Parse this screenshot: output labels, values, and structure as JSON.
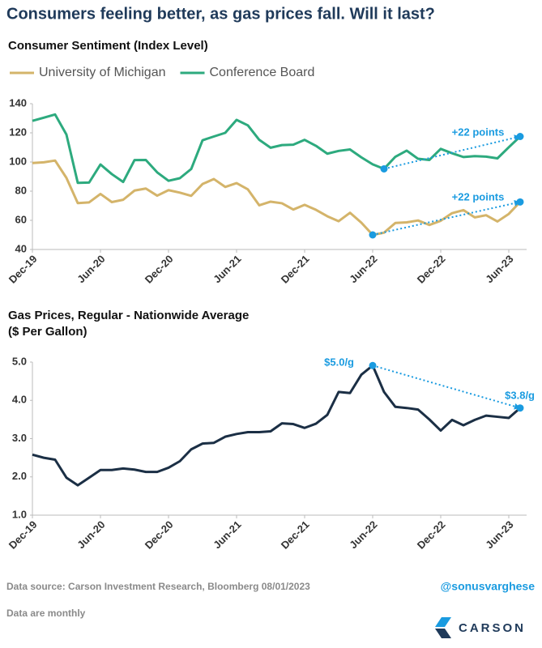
{
  "title": "Consumers feeling better, as gas prices fall. Will it last?",
  "chart_data": [
    {
      "type": "line",
      "title": "Consumer Sentiment (Index Level)",
      "categories": [
        "Dec-19",
        null,
        null,
        null,
        null,
        null,
        "Jun-20",
        null,
        null,
        null,
        null,
        null,
        "Dec-20",
        null,
        null,
        null,
        null,
        null,
        "Jun-21",
        null,
        null,
        null,
        null,
        null,
        "Dec-21",
        null,
        null,
        null,
        null,
        null,
        "Jun-22",
        null,
        null,
        null,
        null,
        null,
        "Dec-22",
        null,
        null,
        null,
        null,
        null,
        "Jun-23",
        null
      ],
      "series": [
        {
          "name": "University of Michigan",
          "color": "#d4b46a",
          "values": [
            99.3,
            99.8,
            101,
            89.1,
            71.8,
            72.3,
            78.1,
            72.5,
            74.1,
            80.4,
            81.8,
            76.9,
            80.7,
            79,
            76.8,
            84.9,
            88.3,
            82.9,
            85.5,
            81.2,
            70.3,
            72.8,
            71.7,
            67.4,
            70.6,
            67.2,
            62.8,
            59.4,
            65.2,
            58.4,
            50,
            51.5,
            58.2,
            58.6,
            59.9,
            56.8,
            59.7,
            64.9,
            67,
            62,
            63.5,
            59.2,
            64.4,
            72.6
          ]
        },
        {
          "name": "Conference Board",
          "color": "#2daa7e",
          "values": [
            128.2,
            130.4,
            132.6,
            118.8,
            85.7,
            85.9,
            98.3,
            91.7,
            86.3,
            101.3,
            101.4,
            92.9,
            87.1,
            88.9,
            95.2,
            114.9,
            117.5,
            120,
            128.9,
            125.1,
            115.2,
            109.8,
            111.6,
            111.9,
            115.2,
            111.1,
            105.7,
            107.6,
            108.6,
            103.2,
            98.4,
            95.3,
            103.6,
            107.8,
            102.2,
            101.4,
            109,
            106,
            103.4,
            104,
            103.7,
            102.5,
            110.1,
            117.5
          ]
        }
      ],
      "ylim": [
        40,
        140
      ],
      "yticks": [
        40,
        60,
        80,
        100,
        120,
        140
      ],
      "annotations": [
        "+22 points",
        "+22 points"
      ],
      "annotation_color": "#1a9be0"
    },
    {
      "type": "line",
      "title": [
        "Gas Prices, Regular - Nationwide Average",
        "($ Per Gallon)"
      ],
      "categories": [
        "Dec-19",
        null,
        null,
        null,
        null,
        null,
        "Jun-20",
        null,
        null,
        null,
        null,
        null,
        "Dec-20",
        null,
        null,
        null,
        null,
        null,
        "Jun-21",
        null,
        null,
        null,
        null,
        null,
        "Dec-21",
        null,
        null,
        null,
        null,
        null,
        "Jun-22",
        null,
        null,
        null,
        null,
        null,
        "Dec-22",
        null,
        null,
        null,
        null,
        null,
        "Jun-23",
        null
      ],
      "color": "#1b2f45",
      "values": [
        2.58,
        2.5,
        2.45,
        1.98,
        1.78,
        1.98,
        2.18,
        2.18,
        2.22,
        2.19,
        2.13,
        2.13,
        2.24,
        2.41,
        2.72,
        2.87,
        2.89,
        3.05,
        3.12,
        3.17,
        3.17,
        3.19,
        3.4,
        3.38,
        3.28,
        3.39,
        3.62,
        4.22,
        4.19,
        4.67,
        4.91,
        4.22,
        3.83,
        3.8,
        3.76,
        3.5,
        3.21,
        3.49,
        3.35,
        3.49,
        3.6,
        3.57,
        3.54,
        3.8
      ],
      "ylim": [
        1,
        5
      ],
      "yticks": [
        {
          "value": 1,
          "label": "1.0"
        },
        {
          "value": 2,
          "label": "2.0"
        },
        {
          "value": 3,
          "label": "3.0"
        },
        {
          "value": 4,
          "label": "4.0"
        },
        {
          "value": 5,
          "label": "5.0"
        }
      ],
      "annotations": [
        "$5.0/g",
        "$3.8/g"
      ],
      "annotation_color": "#1a9be0"
    }
  ],
  "footer": {
    "source": "Data source: Carson Investment Research, Bloomberg   08/01/2023",
    "handle": "@sonusvarghese",
    "note": "Data are monthly",
    "logo": "CARSON"
  }
}
